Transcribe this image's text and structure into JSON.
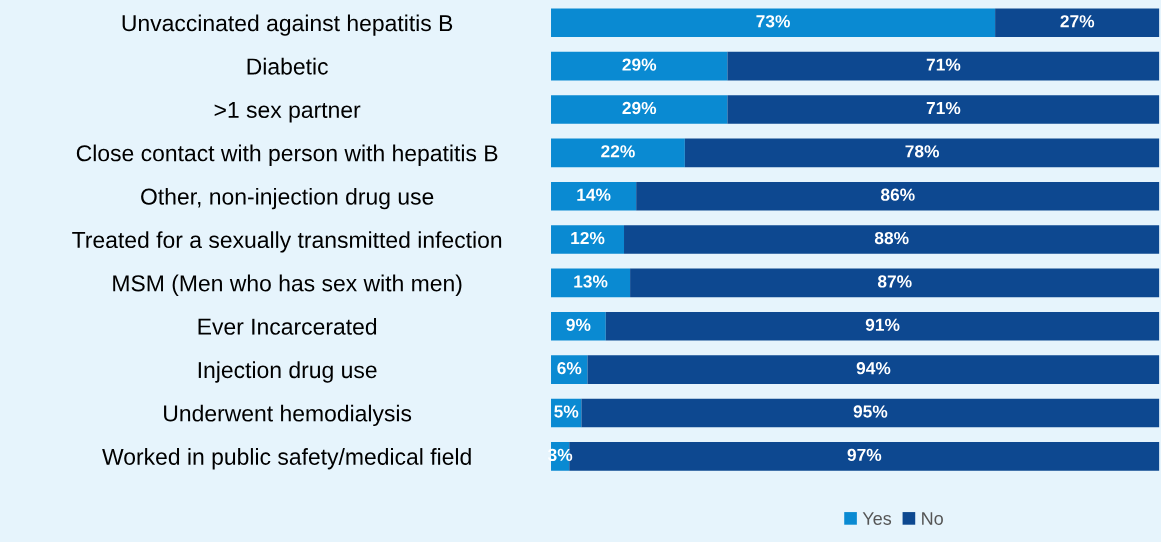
{
  "chart_data": {
    "type": "bar",
    "orientation": "horizontal",
    "stacked": true,
    "categories": [
      "Unvaccinated against hepatitis B",
      "Diabetic",
      ">1 sex partner",
      "Close contact with person with hepatitis B",
      "Other, non-injection drug use",
      "Treated for a sexually transmitted infection",
      "MSM (Men who has sex with men)",
      "Ever Incarcerated",
      "Injection drug use",
      "Underwent hemodialysis",
      "Worked in public safety/medical field"
    ],
    "series": [
      {
        "name": "Yes",
        "color": "#0a8ad2",
        "values": [
          73,
          29,
          29,
          22,
          14,
          12,
          13,
          9,
          6,
          5,
          3
        ],
        "value_labels": [
          "73%",
          "29%",
          "29%",
          "22%",
          "14%",
          "12%",
          "13%",
          "9%",
          "6%",
          "5%",
          "3%"
        ]
      },
      {
        "name": "No",
        "color": "#0d4890",
        "values": [
          27,
          71,
          71,
          78,
          86,
          88,
          87,
          91,
          94,
          95,
          97
        ],
        "value_labels": [
          "27%",
          "71%",
          "71%",
          "78%",
          "86%",
          "88%",
          "87%",
          "91%",
          "94%",
          "95%",
          "97%"
        ]
      }
    ],
    "legend": "bottom",
    "grid": false,
    "tick_labels": "y"
  }
}
